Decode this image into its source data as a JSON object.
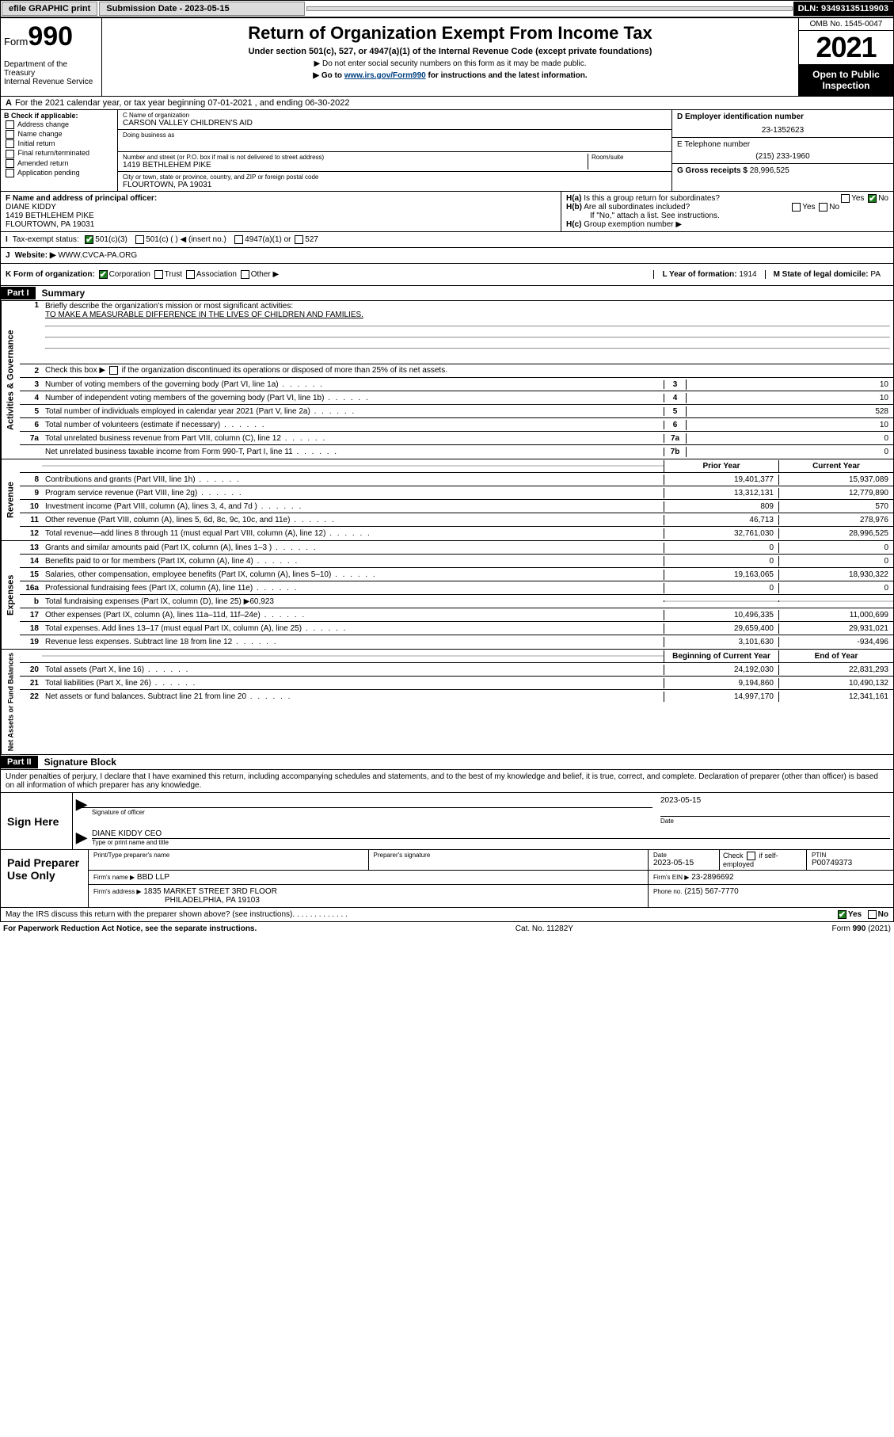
{
  "topbar": {
    "efile": "efile GRAPHIC print",
    "submission_label": "Submission Date - 2023-05-15",
    "dln": "DLN: 93493135119903"
  },
  "header": {
    "form_prefix": "Form",
    "form_num": "990",
    "dept": "Department of the Treasury",
    "irs": "Internal Revenue Service",
    "title": "Return of Organization Exempt From Income Tax",
    "sub": "Under section 501(c), 527, or 4947(a)(1) of the Internal Revenue Code (except private foundations)",
    "note1": "▶ Do not enter social security numbers on this form as it may be made public.",
    "note2_pre": "▶ Go to ",
    "note2_link": "www.irs.gov/Form990",
    "note2_post": " for instructions and the latest information.",
    "omb": "OMB No. 1545-0047",
    "year": "2021",
    "open": "Open to Public Inspection"
  },
  "a": {
    "text": "For the 2021 calendar year, or tax year beginning 07-01-2021   , and ending 06-30-2022"
  },
  "b": {
    "label": "B Check if applicable:",
    "opts": [
      "Address change",
      "Name change",
      "Initial return",
      "Final return/terminated",
      "Amended return",
      "Application pending"
    ]
  },
  "c": {
    "name_lbl": "C Name of organization",
    "name": "CARSON VALLEY CHILDREN'S AID",
    "dba_lbl": "Doing business as",
    "dba": "",
    "addr_lbl": "Number and street (or P.O. box if mail is not delivered to street address)",
    "room_lbl": "Room/suite",
    "addr": "1419 BETHLEHEM PIKE",
    "city_lbl": "City or town, state or province, country, and ZIP or foreign postal code",
    "city": "FLOURTOWN, PA  19031"
  },
  "d": {
    "lbl": "D Employer identification number",
    "val": "23-1352623"
  },
  "e": {
    "lbl": "E Telephone number",
    "val": "(215) 233-1960"
  },
  "g": {
    "lbl": "G Gross receipts $",
    "val": "28,996,525"
  },
  "f": {
    "lbl": "F  Name and address of principal officer:",
    "name": "DIANE KIDDY",
    "addr1": "1419 BETHLEHEM PIKE",
    "addr2": "FLOURTOWN, PA  19031"
  },
  "h": {
    "a": "Is this a group return for subordinates?",
    "b": "Are all subordinates included?",
    "b_note": "If \"No,\" attach a list. See instructions.",
    "c": "Group exemption number ▶"
  },
  "i": {
    "lbl": "Tax-exempt status:",
    "o1": "501(c)(3)",
    "o2": "501(c) (  ) ◀ (insert no.)",
    "o3": "4947(a)(1) or",
    "o4": "527"
  },
  "j": {
    "lbl": "Website: ▶",
    "val": "WWW.CVCA-PA.ORG"
  },
  "k": {
    "lbl": "K Form of organization:",
    "o1": "Corporation",
    "o2": "Trust",
    "o3": "Association",
    "o4": "Other ▶"
  },
  "l": {
    "lbl": "L Year of formation:",
    "val": "1914"
  },
  "m": {
    "lbl": "M State of legal domicile:",
    "val": "PA"
  },
  "part1": {
    "hdr": "Part I",
    "title": "Summary",
    "q1_lbl": "Briefly describe the organization's mission or most significant activities:",
    "q1_val": "TO MAKE A MEASURABLE DIFFERENCE IN THE LIVES OF CHILDREN AND FAMILIES.",
    "q2": "Check this box ▶        if the organization discontinued its operations or disposed of more than 25% of its net assets.",
    "rows_gov": [
      {
        "n": "3",
        "d": "Number of voting members of the governing body (Part VI, line 1a)",
        "r": "3",
        "v": "10"
      },
      {
        "n": "4",
        "d": "Number of independent voting members of the governing body (Part VI, line 1b)",
        "r": "4",
        "v": "10"
      },
      {
        "n": "5",
        "d": "Total number of individuals employed in calendar year 2021 (Part V, line 2a)",
        "r": "5",
        "v": "528"
      },
      {
        "n": "6",
        "d": "Total number of volunteers (estimate if necessary)",
        "r": "6",
        "v": "10"
      },
      {
        "n": "7a",
        "d": "Total unrelated business revenue from Part VIII, column (C), line 12",
        "r": "7a",
        "v": "0"
      },
      {
        "n": "",
        "d": "Net unrelated business taxable income from Form 990-T, Part I, line 11",
        "r": "7b",
        "v": "0"
      }
    ],
    "col_prior": "Prior Year",
    "col_current": "Current Year",
    "rows_rev": [
      {
        "n": "8",
        "d": "Contributions and grants (Part VIII, line 1h)",
        "p": "19,401,377",
        "c": "15,937,089"
      },
      {
        "n": "9",
        "d": "Program service revenue (Part VIII, line 2g)",
        "p": "13,312,131",
        "c": "12,779,890"
      },
      {
        "n": "10",
        "d": "Investment income (Part VIII, column (A), lines 3, 4, and 7d )",
        "p": "809",
        "c": "570"
      },
      {
        "n": "11",
        "d": "Other revenue (Part VIII, column (A), lines 5, 6d, 8c, 9c, 10c, and 11e)",
        "p": "46,713",
        "c": "278,976"
      },
      {
        "n": "12",
        "d": "Total revenue—add lines 8 through 11 (must equal Part VIII, column (A), line 12)",
        "p": "32,761,030",
        "c": "28,996,525"
      }
    ],
    "rows_exp": [
      {
        "n": "13",
        "d": "Grants and similar amounts paid (Part IX, column (A), lines 1–3 )",
        "p": "0",
        "c": "0"
      },
      {
        "n": "14",
        "d": "Benefits paid to or for members (Part IX, column (A), line 4)",
        "p": "0",
        "c": "0"
      },
      {
        "n": "15",
        "d": "Salaries, other compensation, employee benefits (Part IX, column (A), lines 5–10)",
        "p": "19,163,065",
        "c": "18,930,322"
      },
      {
        "n": "16a",
        "d": "Professional fundraising fees (Part IX, column (A), line 11e)",
        "p": "0",
        "c": "0"
      },
      {
        "n": "b",
        "d": "Total fundraising expenses (Part IX, column (D), line 25) ▶60,923",
        "p": "",
        "c": "",
        "grey": true
      },
      {
        "n": "17",
        "d": "Other expenses (Part IX, column (A), lines 11a–11d, 11f–24e)",
        "p": "10,496,335",
        "c": "11,000,699"
      },
      {
        "n": "18",
        "d": "Total expenses. Add lines 13–17 (must equal Part IX, column (A), line 25)",
        "p": "29,659,400",
        "c": "29,931,021"
      },
      {
        "n": "19",
        "d": "Revenue less expenses. Subtract line 18 from line 12",
        "p": "3,101,630",
        "c": "-934,496"
      }
    ],
    "col_begin": "Beginning of Current Year",
    "col_end": "End of Year",
    "rows_net": [
      {
        "n": "20",
        "d": "Total assets (Part X, line 16)",
        "p": "24,192,030",
        "c": "22,831,293"
      },
      {
        "n": "21",
        "d": "Total liabilities (Part X, line 26)",
        "p": "9,194,860",
        "c": "10,490,132"
      },
      {
        "n": "22",
        "d": "Net assets or fund balances. Subtract line 21 from line 20",
        "p": "14,997,170",
        "c": "12,341,161"
      }
    ],
    "vtabs": {
      "gov": "Activities & Governance",
      "rev": "Revenue",
      "exp": "Expenses",
      "net": "Net Assets or Fund Balances"
    }
  },
  "part2": {
    "hdr": "Part II",
    "title": "Signature Block",
    "decl": "Under penalties of perjury, I declare that I have examined this return, including accompanying schedules and statements, and to the best of my knowledge and belief, it is true, correct, and complete. Declaration of preparer (other than officer) is based on all information of which preparer has any knowledge."
  },
  "sign": {
    "here": "Sign Here",
    "sig_officer": "Signature of officer",
    "date_lbl": "Date",
    "date": "2023-05-15",
    "name_title_lbl": "Type or print name and title",
    "name_title": "DIANE KIDDY CEO"
  },
  "paid": {
    "lbl": "Paid Preparer Use Only",
    "col_name": "Print/Type preparer's name",
    "col_sig": "Preparer's signature",
    "col_date": "Date",
    "date": "2023-05-15",
    "self": "Check        if self-employed",
    "ptin_lbl": "PTIN",
    "ptin": "P00749373",
    "firm_name_lbl": "Firm's name    ▶",
    "firm_name": "BBD LLP",
    "firm_ein_lbl": "Firm's EIN ▶",
    "firm_ein": "23-2896692",
    "firm_addr_lbl": "Firm's address ▶",
    "firm_addr1": "1835 MARKET STREET 3RD FLOOR",
    "firm_addr2": "PHILADELPHIA, PA  19103",
    "phone_lbl": "Phone no.",
    "phone": "(215) 567-7770"
  },
  "discuss": "May the IRS discuss this return with the preparer shown above? (see instructions)",
  "footer": {
    "left": "For Paperwork Reduction Act Notice, see the separate instructions.",
    "mid": "Cat. No. 11282Y",
    "right_pre": "Form ",
    "right_num": "990",
    "right_post": " (2021)"
  },
  "yesno": {
    "yes": "Yes",
    "no": "No"
  }
}
